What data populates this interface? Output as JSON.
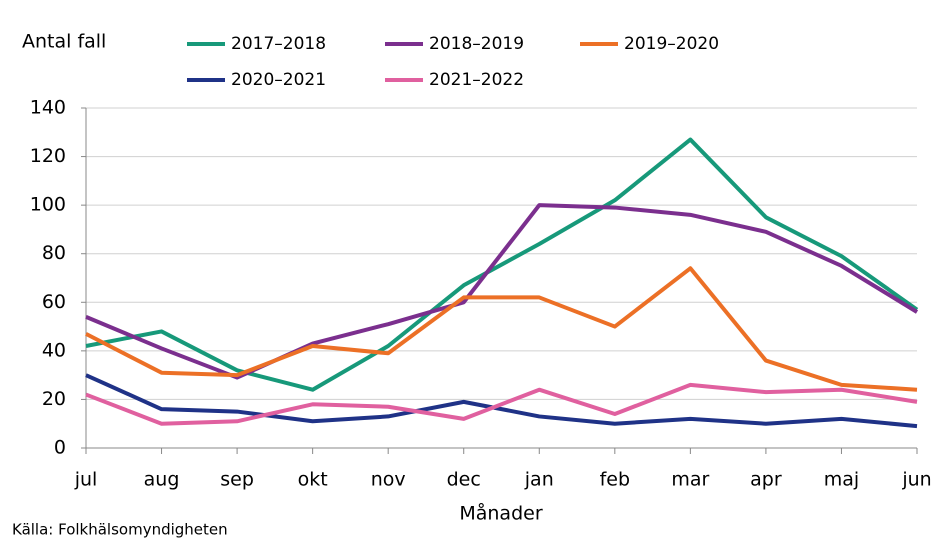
{
  "chart_data": {
    "type": "line",
    "y_label": "Antal fall",
    "x_label": "Månader",
    "source": "Källa: Folkhälsomyndigheten",
    "categories": [
      "jul",
      "aug",
      "sep",
      "okt",
      "nov",
      "dec",
      "jan",
      "feb",
      "mar",
      "apr",
      "maj",
      "jun"
    ],
    "series": [
      {
        "name": "2017–2018",
        "color": "#17997a",
        "values": [
          42,
          48,
          32,
          24,
          42,
          67,
          84,
          102,
          127,
          95,
          79,
          57
        ]
      },
      {
        "name": "2018–2019",
        "color": "#7b2f8e",
        "values": [
          54,
          41,
          29,
          43,
          51,
          60,
          100,
          99,
          96,
          89,
          75,
          56
        ]
      },
      {
        "name": "2019–2020",
        "color": "#ec7026",
        "values": [
          47,
          31,
          30,
          42,
          39,
          62,
          62,
          50,
          74,
          36,
          26,
          24
        ]
      },
      {
        "name": "2020–2021",
        "color": "#1f3287",
        "values": [
          30,
          16,
          15,
          11,
          13,
          19,
          13,
          10,
          12,
          10,
          12,
          9
        ]
      },
      {
        "name": "2021–2022",
        "color": "#e0609f",
        "values": [
          22,
          10,
          11,
          18,
          17,
          12,
          24,
          14,
          26,
          23,
          24,
          19
        ]
      }
    ],
    "ylim": [
      0,
      140
    ],
    "yticks": [
      0,
      20,
      40,
      60,
      80,
      100,
      120,
      140
    ],
    "grid": true
  }
}
